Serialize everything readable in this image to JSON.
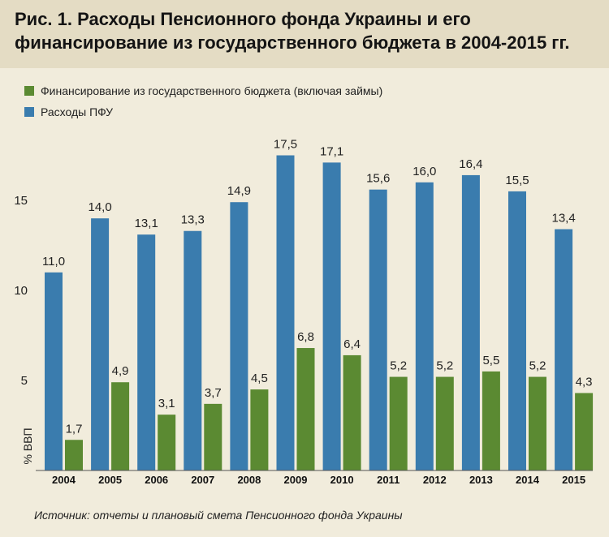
{
  "chart_data": {
    "type": "bar",
    "title": "Рис. 1. Расходы Пенсионного фонда Украины и его финансирование из государственного бюджета в  2004-2015 гг.",
    "ylabel": "% ВВП",
    "xlabel": "",
    "ylim": [
      0,
      20
    ],
    "yticks": [
      "5",
      "10",
      "15"
    ],
    "grid": false,
    "legend_position": "top-left",
    "categories": [
      "2004",
      "2005",
      "2006",
      "2007",
      "2008",
      "2009",
      "2010",
      "2011",
      "2012",
      "2013",
      "2014",
      "2015"
    ],
    "series": [
      {
        "name": "Расходы ПФУ",
        "color": "#3a7cae",
        "values": [
          11.0,
          14.0,
          13.1,
          13.3,
          14.9,
          17.5,
          17.1,
          15.6,
          16.0,
          16.4,
          15.5,
          13.4
        ],
        "labels": [
          "11,0",
          "14,0",
          "13,1",
          "13,3",
          "14,9",
          "17,5",
          "17,1",
          "15,6",
          "16,0",
          "16,4",
          "15,5",
          "13,4"
        ]
      },
      {
        "name": "Финансирование из государственного бюджета (включая займы)",
        "color": "#5b8a32",
        "values": [
          1.7,
          4.9,
          3.1,
          3.7,
          4.5,
          6.8,
          6.4,
          5.2,
          5.2,
          5.5,
          5.2,
          4.3
        ],
        "labels": [
          "1,7",
          "4,9",
          "3,1",
          "3,7",
          "4,5",
          "6,8",
          "6,4",
          "5,2",
          "5,2",
          "5,5",
          "5,2",
          "4,3"
        ]
      }
    ],
    "legend_order": [
      1,
      0
    ]
  },
  "source": "Источник: отчеты и плановый смета Пенсионного фонда Украины"
}
